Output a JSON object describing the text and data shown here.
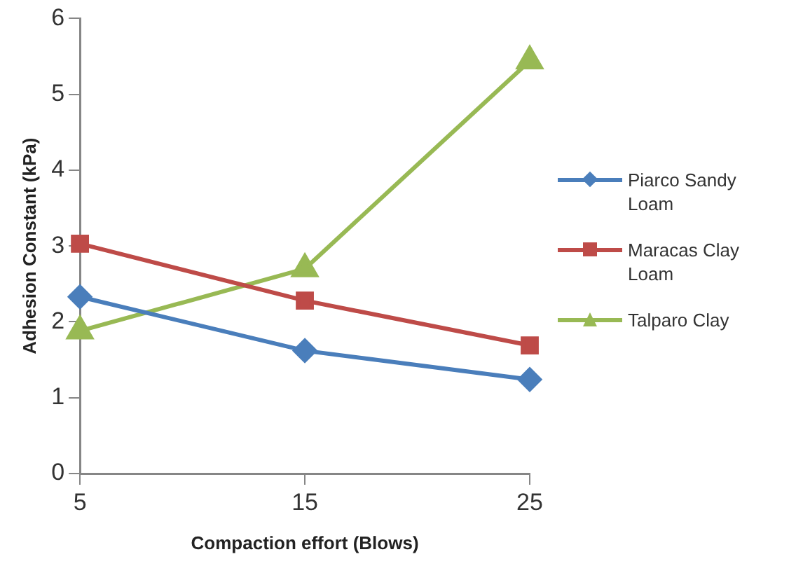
{
  "chart_data": {
    "type": "line",
    "xlabel": "Compaction effort (Blows)",
    "ylabel": "Adhesion Constant (kPa)",
    "x": [
      5,
      15,
      25
    ],
    "xlim": [
      5,
      25
    ],
    "xticks": [
      5,
      15,
      25
    ],
    "ylim": [
      0,
      6
    ],
    "yticks": [
      0,
      1,
      2,
      3,
      4,
      5,
      6
    ],
    "grid": false,
    "legend": "right",
    "line_style": "solid",
    "series": [
      {
        "name": "Piarco Sandy Loam",
        "color": "#4a7ebb",
        "marker": "diamond",
        "values": [
          2.33,
          1.62,
          1.24
        ]
      },
      {
        "name": "Maracas Clay Loam",
        "color": "#be4b48",
        "marker": "square",
        "values": [
          3.03,
          2.28,
          1.69
        ]
      },
      {
        "name": "Talparo Clay",
        "color": "#98b954",
        "marker": "triangle",
        "values": [
          1.88,
          2.7,
          5.44
        ]
      }
    ]
  }
}
